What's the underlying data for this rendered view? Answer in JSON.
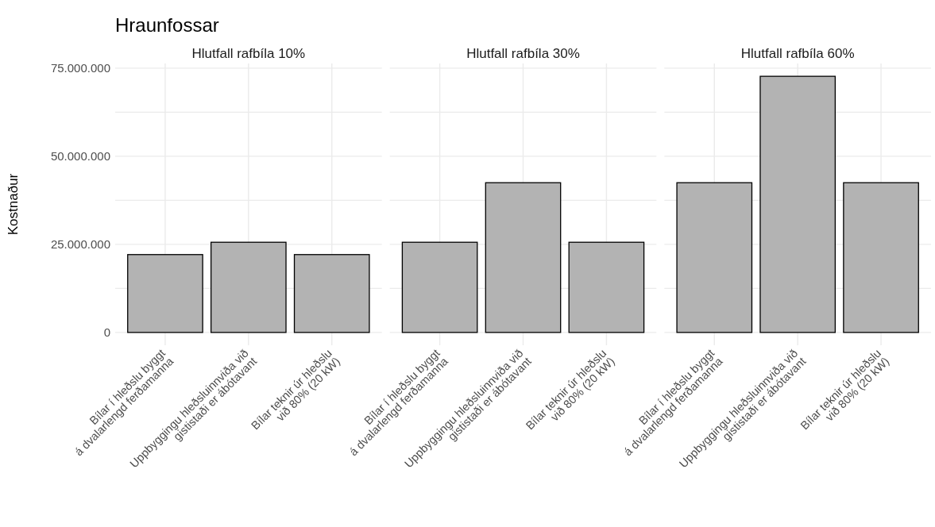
{
  "chart_data": [
    {
      "type": "bar",
      "title": "Hraunfossar",
      "subtitle": "Hlutfall rafbíla 10%",
      "ylabel": "Kostnaður",
      "categories": [
        "Bílar í hleðslu byggt\ná dvalarlengd ferðamanna",
        "Uppbyggingu hleðsluinnviða við\ngististaði er ábótavant",
        "Bílar teknir úr hleðslu\nvið 80% (20 kW)"
      ],
      "values": [
        22100000,
        25600000,
        22100000
      ],
      "color": "#b3b3b3",
      "ylim": [
        -3635000,
        76335000
      ],
      "yticks": [
        {
          "value": 0,
          "label": "0"
        },
        {
          "value": 12500000,
          "label": null
        },
        {
          "value": 25000000,
          "label": "25.000.000"
        },
        {
          "value": 37500000,
          "label": null
        },
        {
          "value": 50000000,
          "label": "50.000.000"
        },
        {
          "value": 62500000,
          "label": null
        },
        {
          "value": 75000000,
          "label": "75.000.000"
        }
      ],
      "grid": true
    },
    {
      "type": "bar",
      "subtitle": "Hlutfall rafbíla 30%",
      "categories": [
        "Bílar í hleðslu byggt\ná dvalarlengd ferðamanna",
        "Uppbyggingu hleðsluinnviða við\ngististaði er ábótavant",
        "Bílar teknir úr hleðslu\nvið 80% (20 kW)"
      ],
      "values": [
        25600000,
        42500000,
        25600000
      ],
      "color": "#b3b3b3",
      "ylim": [
        -3635000,
        76335000
      ],
      "yticks": [
        {
          "value": 0,
          "label": null
        },
        {
          "value": 12500000,
          "label": null
        },
        {
          "value": 25000000,
          "label": null
        },
        {
          "value": 37500000,
          "label": null
        },
        {
          "value": 50000000,
          "label": null
        },
        {
          "value": 62500000,
          "label": null
        },
        {
          "value": 75000000,
          "label": null
        }
      ],
      "grid": true,
      "tick_labels": "x"
    },
    {
      "type": "bar",
      "subtitle": "Hlutfall rafbíla 60%",
      "categories": [
        "Bílar í hleðslu byggt\ná dvalarlengd ferðamanna",
        "Uppbyggingu hleðsluinnviða við\ngististaði er ábótavant",
        "Bílar teknir úr hleðslu\nvið 80% (20 kW)"
      ],
      "values": [
        42500000,
        72700000,
        42500000
      ],
      "color": "#b3b3b3",
      "ylim": [
        -3635000,
        76335000
      ],
      "yticks": [
        {
          "value": 0,
          "label": null
        },
        {
          "value": 12500000,
          "label": null
        },
        {
          "value": 25000000,
          "label": null
        },
        {
          "value": 37500000,
          "label": null
        },
        {
          "value": 50000000,
          "label": null
        },
        {
          "value": 62500000,
          "label": null
        },
        {
          "value": 75000000,
          "label": null
        }
      ],
      "grid": true,
      "tick_labels": "x"
    }
  ]
}
